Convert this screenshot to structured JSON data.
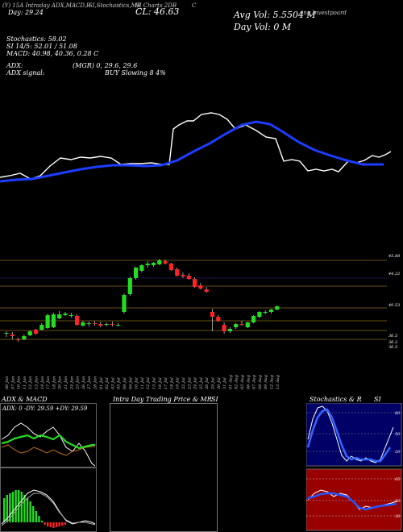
{
  "header": {
    "strip": [
      "(Y) 15A Intraday ADX,MACD,R",
      "SI,Stochastics,MR",
      "SI Charts 2DB",
      "C"
    ],
    "day_line": "Day: 29.24",
    "cl_line": "CL: 46.63",
    "avg_vol": "Avg Vol: 5.5504  M",
    "day_vol": "Day Vol: 0  M",
    "right_tag": "ong Investpoard",
    "stochastics": "Stochastics: 58.02",
    "rsi": "SI 14/5: 52.01 / 51.08",
    "macd": "MACD: 40.98, 40.36, 0.28  C",
    "adx": "ADX:",
    "adx_values": "(MGR) 0, 29.6, 29.6",
    "adx_signal": "ADX  signal:",
    "buy_signal": "BUY Slowing 8 4%"
  },
  "panels": {
    "adx_macd": "ADX  & MACD",
    "intraday": "Intra  Day Trading Price  & MR",
    "intraday_si": "SI",
    "stoch": "Stochastics & R",
    "stoch_si": "SI",
    "adx_readout": "ADX: 0  -DY: 29.59 +DY: 29.59",
    "stoch_ticks": [
      "80",
      "50",
      "20"
    ],
    "rsi_ticks": [
      "65",
      "50",
      "30"
    ]
  },
  "chart_data": {
    "type": "candlestick",
    "price_axis_labels": [
      "45.88",
      "44.22",
      "40.53",
      "36.5",
      "36.3",
      "36.5"
    ],
    "candles": [
      {
        "date": "06 Jun",
        "o": 37.3,
        "h": 37.6,
        "l": 36.9,
        "c": 37.4
      },
      {
        "date": "07 Jun",
        "o": 37.2,
        "h": 37.5,
        "l": 36.6,
        "c": 37.0
      },
      {
        "date": "10 Jun",
        "o": 36.6,
        "h": 36.8,
        "l": 36.3,
        "c": 36.5
      },
      {
        "date": "11 Jun",
        "o": 36.6,
        "h": 37.2,
        "l": 36.5,
        "c": 37.0
      },
      {
        "date": "12 Jun",
        "o": 37.1,
        "h": 37.7,
        "l": 37.0,
        "c": 37.6
      },
      {
        "date": "13 Jun",
        "o": 37.8,
        "h": 37.9,
        "l": 37.2,
        "c": 37.3
      },
      {
        "date": "14 Jun",
        "o": 37.8,
        "h": 38.6,
        "l": 37.7,
        "c": 38.4
      },
      {
        "date": "17 Jun",
        "o": 38.0,
        "h": 39.8,
        "l": 37.9,
        "c": 39.6
      },
      {
        "date": "18 Jun",
        "o": 38.1,
        "h": 39.9,
        "l": 38.0,
        "c": 39.7
      },
      {
        "date": "20 Jun",
        "o": 39.2,
        "h": 40.1,
        "l": 39.1,
        "c": 39.7
      },
      {
        "date": "21 Jun",
        "o": 39.6,
        "h": 40.0,
        "l": 39.5,
        "c": 39.8
      },
      {
        "date": "24 Jun",
        "o": 39.5,
        "h": 39.9,
        "l": 39.3,
        "c": 39.6
      },
      {
        "date": "25 Jun",
        "o": 39.5,
        "h": 39.7,
        "l": 38.3,
        "c": 38.4
      },
      {
        "date": "26 Jun",
        "o": 38.3,
        "h": 38.9,
        "l": 38.2,
        "c": 38.7
      },
      {
        "date": "27 Jun",
        "o": 38.5,
        "h": 38.8,
        "l": 38.2,
        "c": 38.6
      },
      {
        "date": "28 Jun",
        "o": 38.6,
        "h": 38.9,
        "l": 38.3,
        "c": 38.5
      },
      {
        "date": "01 Jul",
        "o": 38.5,
        "h": 38.8,
        "l": 38.1,
        "c": 38.3
      },
      {
        "date": "02 Jul",
        "o": 38.4,
        "h": 38.7,
        "l": 38.2,
        "c": 38.5
      },
      {
        "date": "03 Jul",
        "o": 38.5,
        "h": 38.8,
        "l": 38.2,
        "c": 38.4
      },
      {
        "date": "05 Jul",
        "o": 38.4,
        "h": 38.6,
        "l": 38.2,
        "c": 38.4
      },
      {
        "date": "08 Jul",
        "o": 40.0,
        "h": 42.3,
        "l": 39.8,
        "c": 42.1
      },
      {
        "date": "09 Jul",
        "o": 42.2,
        "h": 44.4,
        "l": 42.0,
        "c": 44.2
      },
      {
        "date": "10 Jul",
        "o": 44.2,
        "h": 45.6,
        "l": 44.0,
        "c": 45.5
      },
      {
        "date": "11 Jul",
        "o": 45.1,
        "h": 45.9,
        "l": 44.9,
        "c": 45.8
      },
      {
        "date": "12 Jul",
        "o": 45.8,
        "h": 46.3,
        "l": 45.5,
        "c": 46.0
      },
      {
        "date": "15 Jul",
        "o": 45.8,
        "h": 46.2,
        "l": 45.6,
        "c": 46.1
      },
      {
        "date": "16 Jul",
        "o": 45.9,
        "h": 46.6,
        "l": 45.8,
        "c": 46.4
      },
      {
        "date": "17 Jul",
        "o": 46.3,
        "h": 46.5,
        "l": 45.9,
        "c": 46.0
      },
      {
        "date": "18 Jul",
        "o": 46.0,
        "h": 46.1,
        "l": 45.1,
        "c": 45.2
      },
      {
        "date": "19 Jul",
        "o": 45.3,
        "h": 45.5,
        "l": 44.4,
        "c": 44.5
      },
      {
        "date": "22 Jul",
        "o": 44.6,
        "h": 44.9,
        "l": 44.2,
        "c": 44.4
      },
      {
        "date": "23 Jul",
        "o": 44.5,
        "h": 44.8,
        "l": 44.0,
        "c": 44.1
      },
      {
        "date": "24 Jul",
        "o": 44.1,
        "h": 44.3,
        "l": 43.0,
        "c": 43.1
      },
      {
        "date": "25 Jul",
        "o": 43.3,
        "h": 43.6,
        "l": 42.8,
        "c": 42.9
      },
      {
        "date": "26 Jul",
        "o": 42.8,
        "h": 43.1,
        "l": 42.4,
        "c": 42.5
      },
      {
        "date": "29 Jul",
        "o": 40.0,
        "h": 40.4,
        "l": 37.6,
        "c": 39.4
      },
      {
        "date": "30 Jul",
        "o": 39.4,
        "h": 39.6,
        "l": 38.8,
        "c": 38.9
      },
      {
        "date": "31 Jul",
        "o": 38.4,
        "h": 38.7,
        "l": 37.3,
        "c": 37.6
      },
      {
        "date": "01 Aug",
        "o": 37.6,
        "h": 38.1,
        "l": 37.4,
        "c": 37.9
      },
      {
        "date": "02 Aug",
        "o": 38.1,
        "h": 38.6,
        "l": 37.9,
        "c": 38.5
      },
      {
        "date": "05 Aug",
        "o": 38.5,
        "h": 38.9,
        "l": 38.3,
        "c": 38.4
      },
      {
        "date": "06 Aug",
        "o": 38.1,
        "h": 38.8,
        "l": 38.0,
        "c": 38.7
      },
      {
        "date": "07 Aug",
        "o": 38.7,
        "h": 39.6,
        "l": 38.6,
        "c": 39.5
      },
      {
        "date": "08 Aug",
        "o": 39.4,
        "h": 40.1,
        "l": 39.2,
        "c": 40.0
      },
      {
        "date": "09 Aug",
        "o": 39.9,
        "h": 40.2,
        "l": 39.7,
        "c": 40.0
      },
      {
        "date": "12 Aug",
        "o": 40.0,
        "h": 40.4,
        "l": 39.8,
        "c": 40.3
      },
      {
        "date": "13 Aug",
        "o": 40.3,
        "h": 40.8,
        "l": 40.2,
        "c": 40.7
      }
    ]
  }
}
